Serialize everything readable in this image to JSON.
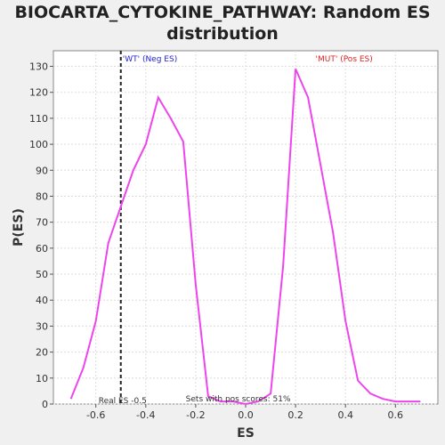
{
  "chart_data": {
    "type": "line",
    "title_line1": "BIOCARTA_CYTOKINE_PATHWAY: Random ES",
    "title_line2": "distribution",
    "xlabel": "ES",
    "ylabel": "P(ES)",
    "xlim": [
      -0.77,
      0.77
    ],
    "ylim": [
      0,
      136
    ],
    "x_ticks": [
      -0.6,
      -0.4,
      -0.2,
      0.0,
      0.2,
      0.4,
      0.6
    ],
    "x_tick_labels": [
      "-0.6",
      "-0.4",
      "-0.2",
      "0.0",
      "0.2",
      "0.4",
      "0.6"
    ],
    "y_ticks": [
      0,
      10,
      20,
      30,
      40,
      50,
      60,
      70,
      80,
      90,
      100,
      110,
      120,
      130
    ],
    "y_tick_labels": [
      "0",
      "10",
      "20",
      "30",
      "40",
      "50",
      "60",
      "70",
      "80",
      "90",
      "100",
      "110",
      "120",
      "130"
    ],
    "grid": true,
    "series_color": "#ee44ee",
    "series": [
      {
        "x": [
          -0.7,
          -0.65,
          -0.6,
          -0.55,
          -0.5,
          -0.45,
          -0.4,
          -0.35,
          -0.3,
          -0.25,
          -0.2,
          -0.15,
          -0.1,
          -0.05,
          0.0,
          0.05,
          0.1,
          0.15,
          0.2,
          0.25,
          0.3,
          0.35,
          0.4,
          0.45,
          0.5,
          0.55,
          0.6,
          0.65,
          0.7
        ],
        "y": [
          2,
          14,
          32,
          62,
          76,
          90,
          100,
          118,
          110,
          101,
          46,
          3,
          1,
          1,
          0,
          1,
          4,
          53,
          129,
          118,
          92,
          66,
          32,
          9,
          4,
          2,
          1,
          1,
          1
        ]
      }
    ],
    "real_es": -0.5,
    "real_es_line_color": "#222222",
    "annotations": {
      "wt": "'WT' (Neg ES)",
      "wt_color": "#2222dd",
      "mut": "'MUT' (Pos ES)",
      "mut_color": "#dd2222",
      "real_es": "Real ES -0.5",
      "pos_scores": "Sets with pos scores: 51%"
    }
  }
}
